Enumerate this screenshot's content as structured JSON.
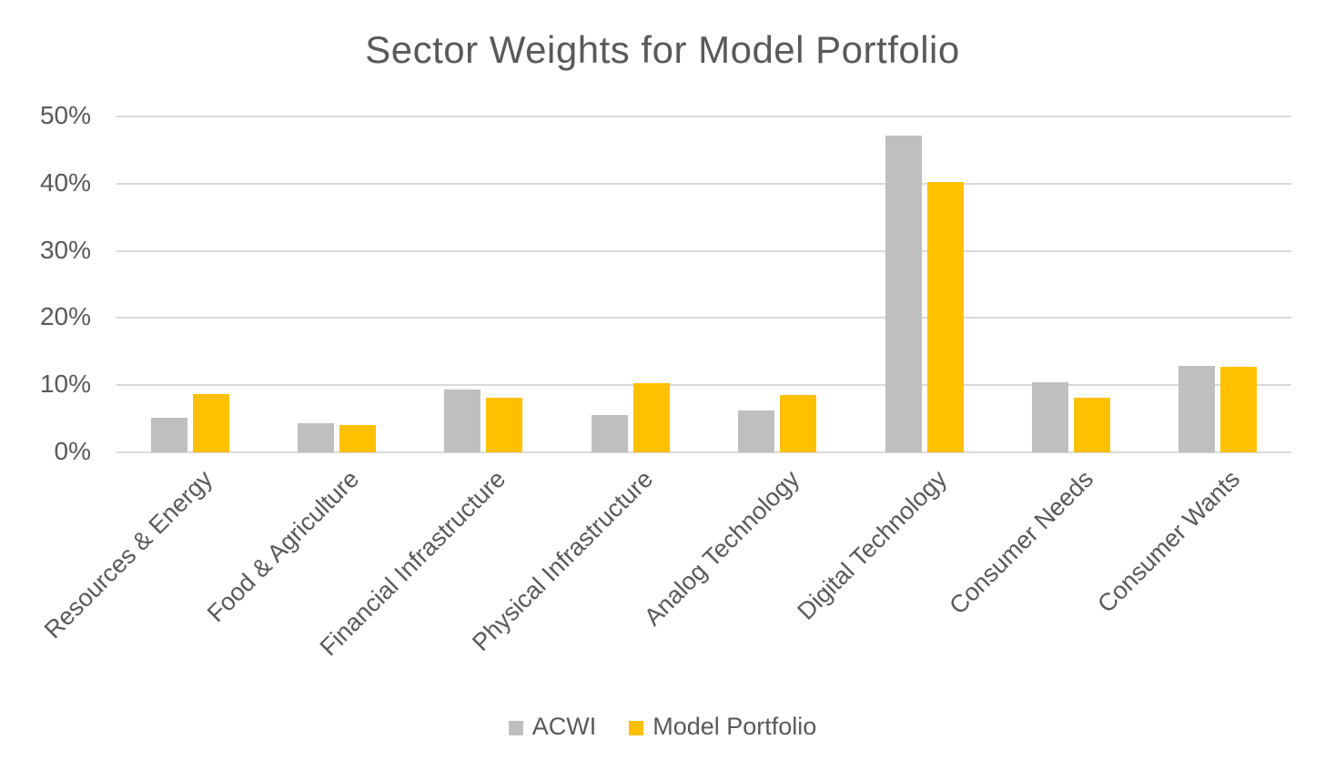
{
  "chart_data": {
    "type": "bar",
    "title": "Sector Weights for Model Portfolio",
    "categories": [
      "Resources & Energy",
      "Food & Agriculture",
      "Financial Infrastructure",
      "Physical Infrastructure",
      "Analog Technology",
      "Digital Technology",
      "Consumer Needs",
      "Consumer Wants"
    ],
    "series": [
      {
        "name": "ACWI",
        "color": "#BFBFBF",
        "values": [
          5.1,
          4.3,
          9.3,
          5.5,
          6.2,
          47.1,
          10.5,
          12.9
        ]
      },
      {
        "name": "Model Portfolio",
        "color": "#FFC000",
        "values": [
          8.7,
          4.1,
          8.1,
          10.3,
          8.6,
          40.3,
          8.1,
          12.7
        ]
      }
    ],
    "ylim": [
      0,
      50
    ],
    "yticks": [
      {
        "value": 0,
        "label": "0%"
      },
      {
        "value": 10,
        "label": "10%"
      },
      {
        "value": 20,
        "label": "20%"
      },
      {
        "value": 30,
        "label": "30%"
      },
      {
        "value": 40,
        "label": "40%"
      },
      {
        "value": 50,
        "label": "50%"
      }
    ],
    "grid": true,
    "legend_position": "bottom",
    "colors": {
      "text": "#595959",
      "gridline": "#D9D9D9",
      "background": "#FFFFFF"
    }
  }
}
